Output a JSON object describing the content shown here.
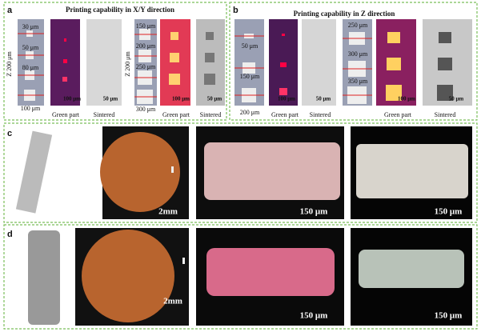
{
  "panel_a": {
    "label": "a",
    "title": "Printing capability in X/Y direction",
    "group_1": {
      "axis_label": "Z 200 μm",
      "sizes": [
        "30 μm",
        "50 μm",
        "80 μm",
        "100 μm"
      ],
      "green_scale": "100 μm",
      "sintered_scale": "50 μm",
      "green_caption": "Green part",
      "sintered_caption": "Sintered"
    },
    "group_2": {
      "axis_label": "Z 200 μm",
      "sizes": [
        "150 μm",
        "200 μm",
        "250 μm",
        "300 μm"
      ],
      "green_scale": "100 μm",
      "sintered_scale": "50 μm",
      "green_caption": "Green part",
      "sintered_caption": "Sintered"
    }
  },
  "panel_b": {
    "label": "b",
    "title": "Printing capability in Z direction",
    "group_1": {
      "sizes": [
        "50 μm",
        "150 μm",
        "200 μm"
      ],
      "green_scale": "100 μm",
      "sintered_scale": "50 μm",
      "green_caption": "Green part",
      "sintered_caption": "Sintered"
    },
    "group_2": {
      "sizes": [
        "250 μm",
        "300 μm",
        "350 μm"
      ],
      "green_scale": "100 μm",
      "sintered_scale": "50 μm",
      "green_caption": "Green part",
      "sintered_caption": "Sintered"
    }
  },
  "panel_c": {
    "label": "c",
    "coin_scale": "2mm",
    "green_scale": "150 μm",
    "sintered_scale": "150 μm"
  },
  "panel_d": {
    "label": "d",
    "coin_scale": "2mm",
    "green_scale": "150 μm",
    "sintered_scale": "150 μm"
  }
}
